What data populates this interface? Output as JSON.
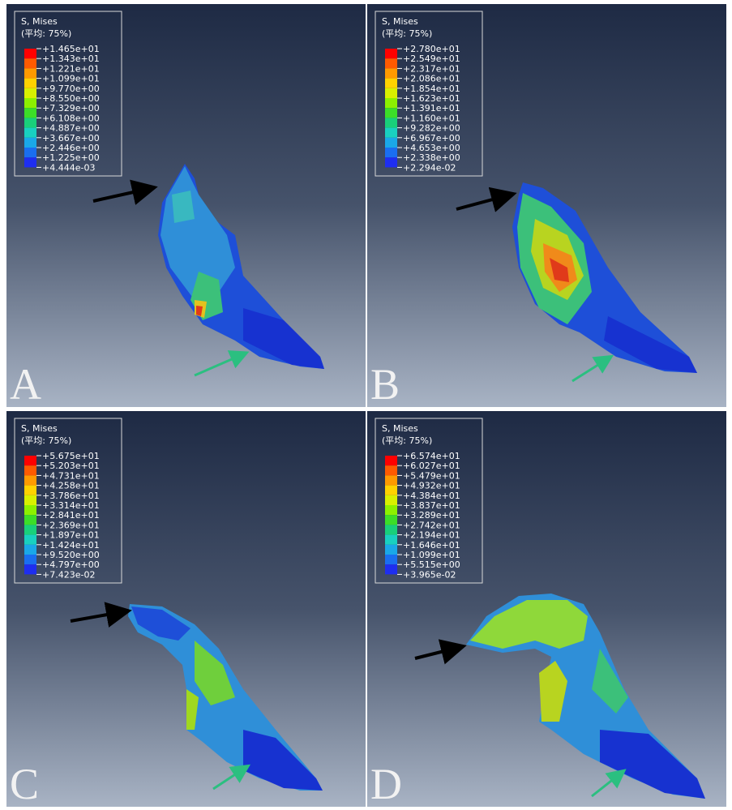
{
  "panels": [
    {
      "label": "A",
      "legend": {
        "title": "S, Mises",
        "subtitle": "(平均: 75%)",
        "labels": [
          "+1.465e+01",
          "+1.343e+01",
          "+1.221e+01",
          "+1.099e+01",
          "+9.770e+00",
          "+8.550e+00",
          "+7.329e+00",
          "+6.108e+00",
          "+4.887e+00",
          "+3.667e+00",
          "+2.446e+00",
          "+1.225e+00",
          "+4.444e-03"
        ]
      }
    },
    {
      "label": "B",
      "legend": {
        "title": "S, Mises",
        "subtitle": "(平均: 75%)",
        "labels": [
          "+2.780e+01",
          "+2.549e+01",
          "+2.317e+01",
          "+2.086e+01",
          "+1.854e+01",
          "+1.623e+01",
          "+1.391e+01",
          "+1.160e+01",
          "+9.282e+00",
          "+6.967e+00",
          "+4.653e+00",
          "+2.338e+00",
          "+2.294e-02"
        ]
      }
    },
    {
      "label": "C",
      "legend": {
        "title": "S, Mises",
        "subtitle": "(平均: 75%)",
        "labels": [
          "+5.675e+01",
          "+5.203e+01",
          "+4.731e+01",
          "+4.258e+01",
          "+3.786e+01",
          "+3.314e+01",
          "+2.841e+01",
          "+2.369e+01",
          "+1.897e+01",
          "+1.424e+01",
          "+9.520e+00",
          "+4.797e+00",
          "+7.423e-02"
        ]
      }
    },
    {
      "label": "D",
      "legend": {
        "title": "S, Mises",
        "subtitle": "(平均: 75%)",
        "labels": [
          "+6.574e+01",
          "+6.027e+01",
          "+5.479e+01",
          "+4.932e+01",
          "+4.384e+01",
          "+3.837e+01",
          "+3.289e+01",
          "+2.742e+01",
          "+2.194e+01",
          "+1.646e+01",
          "+1.099e+01",
          "+5.515e+00",
          "+3.965e-02"
        ]
      }
    }
  ]
}
